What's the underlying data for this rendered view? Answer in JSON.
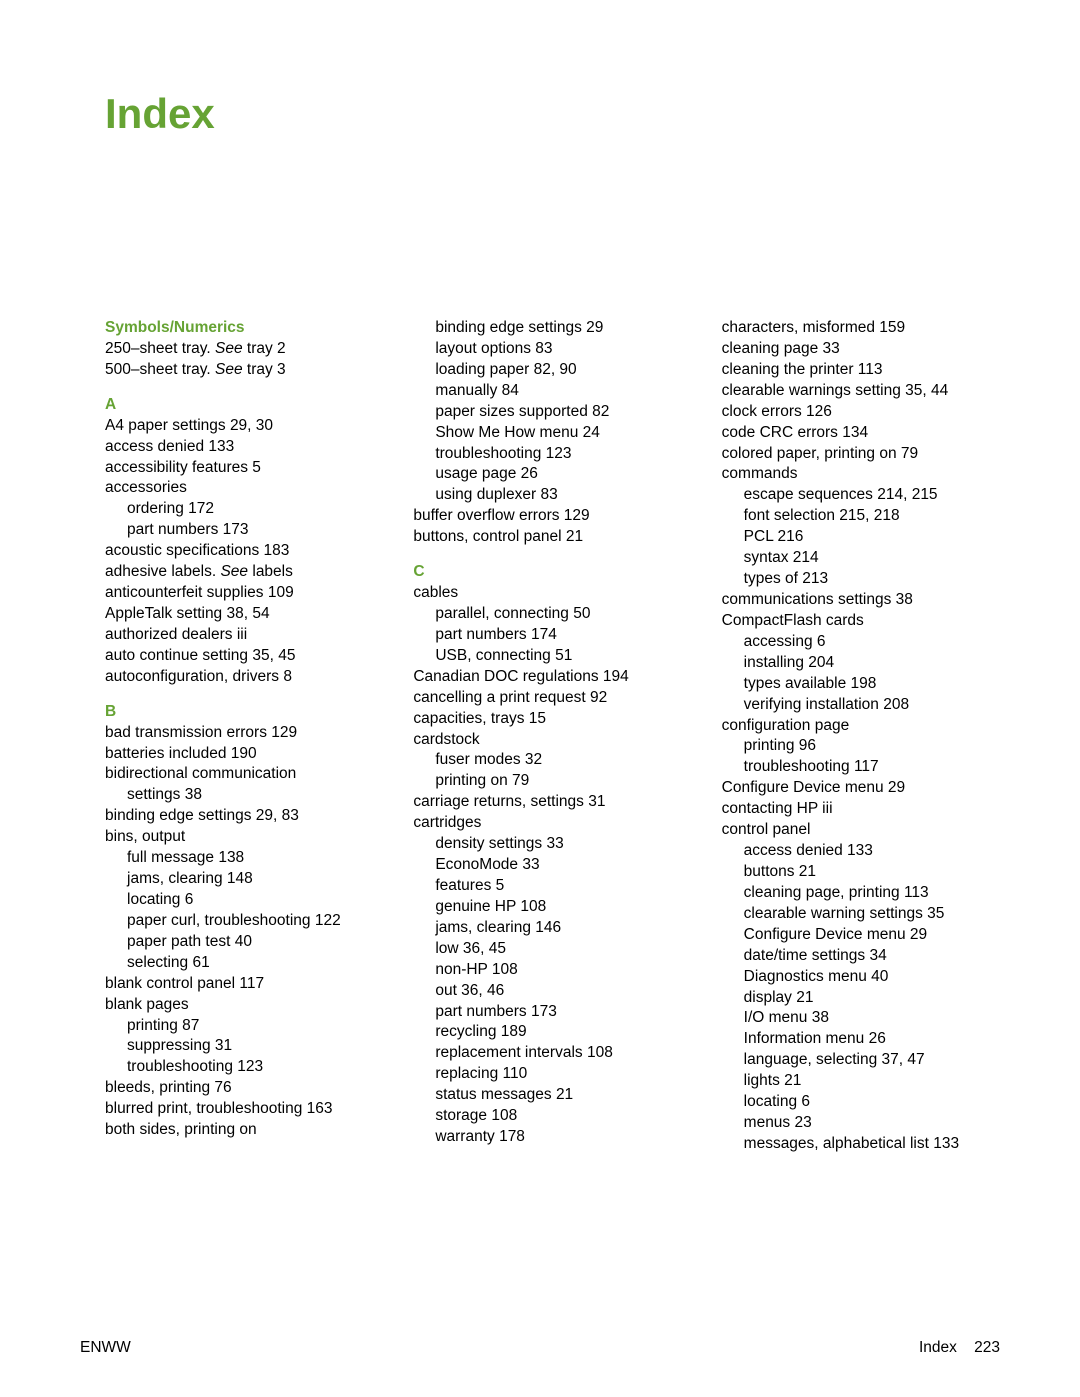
{
  "title": "Index",
  "colors": {
    "accent": "#66a334",
    "text": "#000000",
    "bg": "#ffffff"
  },
  "footer": {
    "left": "ENWW",
    "right_label": "Index",
    "right_page": "223"
  },
  "columns": [
    [
      {
        "type": "head",
        "text": "Symbols/Numerics",
        "first": true
      },
      {
        "type": "line",
        "text": "250–sheet tray. ",
        "see": "See",
        "tail": " tray 2"
      },
      {
        "type": "line",
        "text": "500–sheet tray. ",
        "see": "See",
        "tail": " tray 3"
      },
      {
        "type": "head",
        "text": "A"
      },
      {
        "type": "line",
        "text": "A4 paper settings    29, 30"
      },
      {
        "type": "line",
        "text": "access denied    133"
      },
      {
        "type": "line",
        "text": "accessibility features    5"
      },
      {
        "type": "line",
        "text": "accessories"
      },
      {
        "type": "sub",
        "text": "ordering    172"
      },
      {
        "type": "sub",
        "text": "part numbers    173"
      },
      {
        "type": "line",
        "text": "acoustic specifications    183"
      },
      {
        "type": "line",
        "text": "adhesive labels. ",
        "see": "See",
        "tail": " labels"
      },
      {
        "type": "line",
        "text": "anticounterfeit supplies    109"
      },
      {
        "type": "line",
        "text": "AppleTalk setting    38, 54"
      },
      {
        "type": "line",
        "text": "authorized dealers    iii"
      },
      {
        "type": "line",
        "text": "auto continue setting    35, 45"
      },
      {
        "type": "line",
        "text": "autoconfiguration, drivers    8"
      },
      {
        "type": "head",
        "text": "B"
      },
      {
        "type": "line",
        "text": "bad transmission errors    129"
      },
      {
        "type": "line",
        "text": "batteries included    190"
      },
      {
        "type": "line",
        "text": "bidirectional communication"
      },
      {
        "type": "sub",
        "text": "settings    38"
      },
      {
        "type": "line",
        "text": "binding edge settings    29, 83"
      },
      {
        "type": "line",
        "text": "bins, output"
      },
      {
        "type": "sub",
        "text": "full message    138"
      },
      {
        "type": "sub",
        "text": "jams, clearing    148"
      },
      {
        "type": "sub",
        "text": "locating    6"
      },
      {
        "type": "sub",
        "text": "paper curl, troubleshooting    122"
      },
      {
        "type": "sub",
        "text": "paper path test    40"
      },
      {
        "type": "sub",
        "text": "selecting    61"
      },
      {
        "type": "line",
        "text": "blank control panel    117"
      },
      {
        "type": "line",
        "text": "blank pages"
      },
      {
        "type": "sub",
        "text": "printing    87"
      },
      {
        "type": "sub",
        "text": "suppressing    31"
      },
      {
        "type": "sub",
        "text": "troubleshooting    123"
      },
      {
        "type": "line",
        "text": "bleeds, printing    76"
      },
      {
        "type": "line",
        "text": "blurred print, troubleshooting    163"
      },
      {
        "type": "line",
        "text": "both sides, printing on"
      }
    ],
    [
      {
        "type": "sub",
        "text": "binding edge settings    29"
      },
      {
        "type": "sub",
        "text": "layout options    83"
      },
      {
        "type": "sub",
        "text": "loading paper    82, 90"
      },
      {
        "type": "sub",
        "text": "manually    84"
      },
      {
        "type": "sub",
        "text": "paper sizes supported    82"
      },
      {
        "type": "sub",
        "text": "Show Me How menu    24"
      },
      {
        "type": "sub",
        "text": "troubleshooting    123"
      },
      {
        "type": "sub",
        "text": "usage page    26"
      },
      {
        "type": "sub",
        "text": "using duplexer    83"
      },
      {
        "type": "line",
        "text": "buffer overflow errors    129"
      },
      {
        "type": "line",
        "text": "buttons, control panel    21"
      },
      {
        "type": "head",
        "text": "C"
      },
      {
        "type": "line",
        "text": "cables"
      },
      {
        "type": "sub",
        "text": "parallel, connecting    50"
      },
      {
        "type": "sub",
        "text": "part numbers    174"
      },
      {
        "type": "sub",
        "text": "USB, connecting    51"
      },
      {
        "type": "line",
        "text": "Canadian DOC regulations    194"
      },
      {
        "type": "line",
        "text": "cancelling a print request    92"
      },
      {
        "type": "line",
        "text": "capacities, trays    15"
      },
      {
        "type": "line",
        "text": "cardstock"
      },
      {
        "type": "sub",
        "text": "fuser modes    32"
      },
      {
        "type": "sub",
        "text": "printing on    79"
      },
      {
        "type": "line",
        "text": "carriage returns, settings    31"
      },
      {
        "type": "line",
        "text": "cartridges"
      },
      {
        "type": "sub",
        "text": "density settings    33"
      },
      {
        "type": "sub",
        "text": "EconoMode    33"
      },
      {
        "type": "sub",
        "text": "features    5"
      },
      {
        "type": "sub",
        "text": "genuine HP    108"
      },
      {
        "type": "sub",
        "text": "jams, clearing    146"
      },
      {
        "type": "sub",
        "text": "low    36, 45"
      },
      {
        "type": "sub",
        "text": "non-HP    108"
      },
      {
        "type": "sub",
        "text": "out    36, 46"
      },
      {
        "type": "sub",
        "text": "part numbers    173"
      },
      {
        "type": "sub",
        "text": "recycling    189"
      },
      {
        "type": "sub",
        "text": "replacement intervals    108"
      },
      {
        "type": "sub",
        "text": "replacing    110"
      },
      {
        "type": "sub",
        "text": "status messages    21"
      },
      {
        "type": "sub",
        "text": "storage    108"
      },
      {
        "type": "sub",
        "text": "warranty    178"
      }
    ],
    [
      {
        "type": "line",
        "text": "characters, misformed    159"
      },
      {
        "type": "line",
        "text": "cleaning page    33"
      },
      {
        "type": "line",
        "text": "cleaning the printer    113"
      },
      {
        "type": "line",
        "text": "clearable warnings setting    35, 44"
      },
      {
        "type": "line",
        "text": "clock errors    126"
      },
      {
        "type": "line",
        "text": "code CRC errors    134"
      },
      {
        "type": "line",
        "text": "colored paper, printing on    79"
      },
      {
        "type": "line",
        "text": "commands"
      },
      {
        "type": "sub",
        "text": "escape sequences    214, 215"
      },
      {
        "type": "sub",
        "text": "font selection    215, 218"
      },
      {
        "type": "sub",
        "text": "PCL    216"
      },
      {
        "type": "sub",
        "text": "syntax    214"
      },
      {
        "type": "sub",
        "text": "types of    213"
      },
      {
        "type": "line",
        "text": "communications settings    38"
      },
      {
        "type": "line",
        "text": "CompactFlash cards"
      },
      {
        "type": "sub",
        "text": "accessing    6"
      },
      {
        "type": "sub",
        "text": "installing    204"
      },
      {
        "type": "sub",
        "text": "types available    198"
      },
      {
        "type": "sub",
        "text": "verifying installation    208"
      },
      {
        "type": "line",
        "text": "configuration page"
      },
      {
        "type": "sub",
        "text": "printing    96"
      },
      {
        "type": "sub",
        "text": "troubleshooting    117"
      },
      {
        "type": "line",
        "text": "Configure Device menu    29"
      },
      {
        "type": "line",
        "text": "contacting HP    iii"
      },
      {
        "type": "line",
        "text": "control panel"
      },
      {
        "type": "sub",
        "text": "access denied    133"
      },
      {
        "type": "sub",
        "text": "buttons    21"
      },
      {
        "type": "sub",
        "text": "cleaning page, printing    113"
      },
      {
        "type": "sub",
        "text": "clearable warning settings    35"
      },
      {
        "type": "sub",
        "text": "Configure Device menu    29"
      },
      {
        "type": "sub",
        "text": "date/time settings    34"
      },
      {
        "type": "sub",
        "text": "Diagnostics menu    40"
      },
      {
        "type": "sub",
        "text": "display    21"
      },
      {
        "type": "sub",
        "text": "I/O menu    38"
      },
      {
        "type": "sub",
        "text": "Information menu    26"
      },
      {
        "type": "sub",
        "text": "language, selecting    37, 47"
      },
      {
        "type": "sub",
        "text": "lights    21"
      },
      {
        "type": "sub",
        "text": "locating    6"
      },
      {
        "type": "sub",
        "text": "menus    23"
      },
      {
        "type": "sub",
        "text": "messages, alphabetical list   133"
      }
    ]
  ]
}
